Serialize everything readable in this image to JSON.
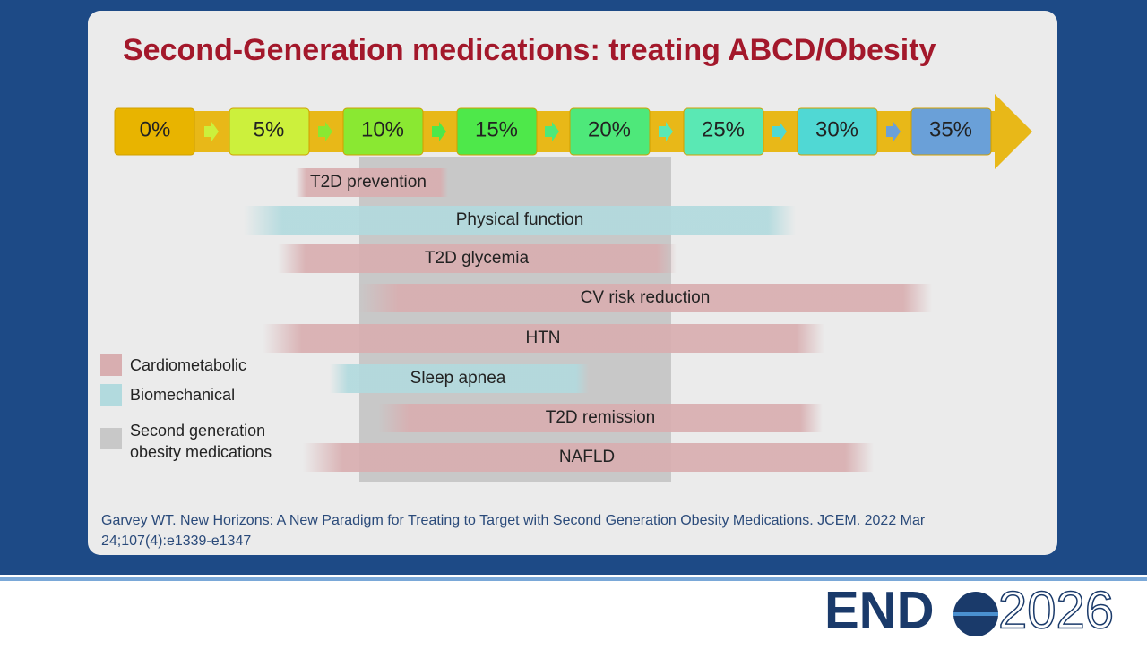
{
  "header": {
    "title": "Second-Generation medications: treating ABCD/Obesity"
  },
  "scale": [
    "0%",
    "5%",
    "10%",
    "15%",
    "20%",
    "25%",
    "30%",
    "35%"
  ],
  "bars": [
    "T2D prevention",
    "Physical function",
    "T2D glycemia",
    "CV risk reduction",
    "HTN",
    "Sleep apnea",
    "T2D remission",
    "NAFLD"
  ],
  "legend": [
    "Cardiometabolic",
    "Biomechanical",
    "Second generation",
    "obesity medications"
  ],
  "citation": [
    "Garvey WT.  New Horizons: A New Paradigm for Treating to Target with Second Generation Obesity Medications.  JCEM. 2022 Mar",
    "24;107(4):e1339-e1347"
  ],
  "logo": {
    "left": "END",
    "right": "2026"
  }
}
